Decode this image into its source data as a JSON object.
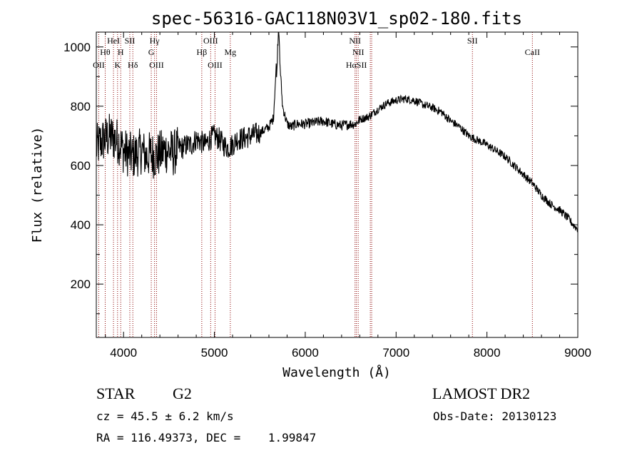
{
  "chart_data": {
    "type": "line",
    "title": "spec-56316-GAC118N03V1_sp02-180.fits",
    "xlabel": "Wavelength (Å)",
    "ylabel": "Flux (relative)",
    "xlim": [
      3700,
      9000
    ],
    "ylim": [
      20,
      1050
    ],
    "xticks": [
      4000,
      5000,
      6000,
      7000,
      8000,
      9000
    ],
    "yticks": [
      200,
      400,
      600,
      800,
      1000
    ],
    "grid": false,
    "legend": "none",
    "line_color": "#000000",
    "marker_color": "#8b0000",
    "spectrum": {
      "x": [
        3700,
        3750,
        3800,
        3850,
        3900,
        3950,
        4000,
        4050,
        4100,
        4150,
        4200,
        4250,
        4300,
        4350,
        4400,
        4450,
        4500,
        4550,
        4600,
        4650,
        4700,
        4750,
        4800,
        4850,
        4900,
        4950,
        5000,
        5050,
        5100,
        5150,
        5200,
        5250,
        5300,
        5400,
        5500,
        5600,
        5650,
        5700,
        5750,
        5800,
        5850,
        5900,
        6000,
        6100,
        6200,
        6300,
        6400,
        6500,
        6550,
        6600,
        6700,
        6800,
        6900,
        7000,
        7100,
        7200,
        7300,
        7400,
        7500,
        7600,
        7700,
        7800,
        7900,
        8000,
        8100,
        8200,
        8300,
        8400,
        8500,
        8600,
        8700,
        8800,
        8900,
        8950,
        9000
      ],
      "y": [
        660,
        680,
        690,
        700,
        690,
        680,
        650,
        640,
        630,
        640,
        650,
        630,
        640,
        630,
        640,
        650,
        650,
        640,
        660,
        660,
        670,
        670,
        690,
        680,
        670,
        690,
        700,
        690,
        670,
        660,
        670,
        690,
        690,
        700,
        710,
        730,
        760,
        1050,
        800,
        740,
        730,
        740,
        740,
        745,
        750,
        740,
        735,
        740,
        740,
        755,
        765,
        790,
        810,
        820,
        825,
        820,
        805,
        795,
        780,
        750,
        730,
        700,
        685,
        670,
        650,
        630,
        600,
        570,
        540,
        500,
        470,
        450,
        420,
        400,
        385
      ]
    },
    "lines": [
      {
        "label": "OII",
        "x": 3727,
        "row": 3
      },
      {
        "label": "Hθ",
        "x": 3798,
        "row": 2
      },
      {
        "label": "HeI",
        "x": 3889,
        "row": 1
      },
      {
        "label": "K",
        "x": 3934,
        "row": 3
      },
      {
        "label": "H",
        "x": 3969,
        "row": 2
      },
      {
        "label": "SII",
        "x": 4069,
        "row": 1
      },
      {
        "label": "Hδ",
        "x": 4102,
        "row": 3
      },
      {
        "label": "Hγ",
        "x": 4341,
        "row": 1
      },
      {
        "label": "G",
        "x": 4305,
        "row": 2
      },
      {
        "label": "OIII",
        "x": 4363,
        "row": 3
      },
      {
        "label": "Hβ",
        "x": 4861,
        "row": 2
      },
      {
        "label": "OIII",
        "x": 4959,
        "row": 1
      },
      {
        "label": "OIII",
        "x": 5007,
        "row": 3
      },
      {
        "label": "Mg",
        "x": 5175,
        "row": 2
      },
      {
        "label": "NII",
        "x": 6548,
        "row": 1
      },
      {
        "label": "NII",
        "x": 6583,
        "row": 2
      },
      {
        "label": "HαSII",
        "x": 6563,
        "row": 3
      },
      {
        "label": "SII",
        "x": 7840,
        "row": 1
      },
      {
        "label": "CaII",
        "x": 8500,
        "row": 2
      }
    ],
    "extra_markers": [
      6716,
      6731
    ]
  },
  "info": {
    "object_type": "STAR",
    "subclass": "G2",
    "survey": "LAMOST DR2",
    "cz": "cz = 45.5 ± 6.2 km/s",
    "obs_date": "Obs-Date: 20130123",
    "coords": "RA = 116.49373, DEC =    1.99847"
  }
}
